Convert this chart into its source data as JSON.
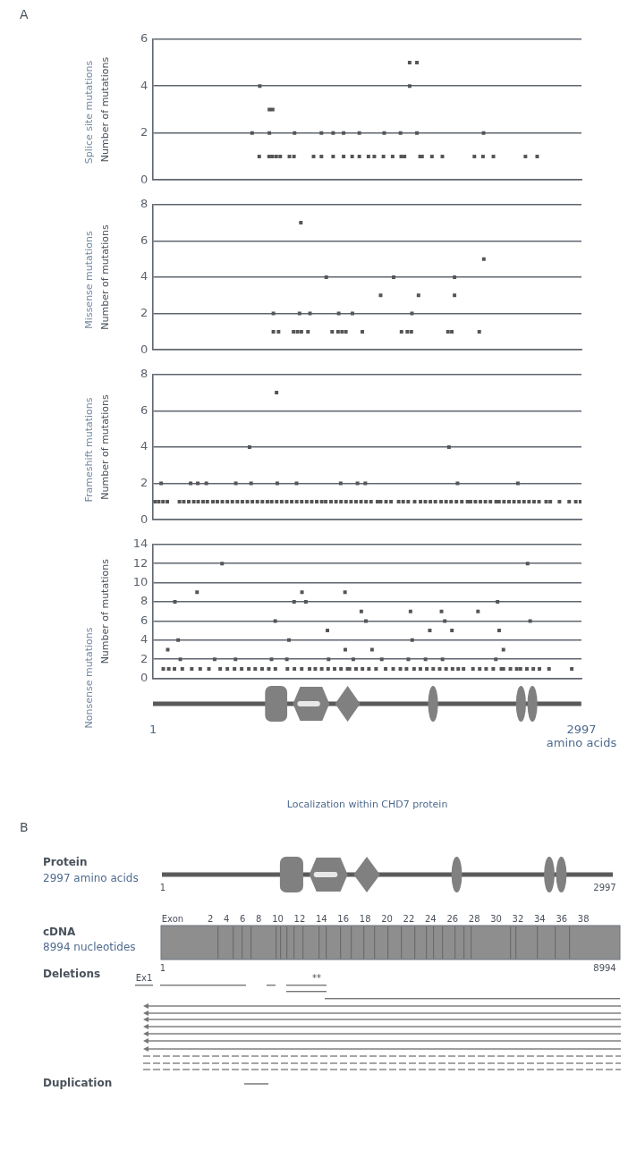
{
  "chart_data": [
    {
      "type": "scatter",
      "title": "Splice site mutations",
      "ylabel": "Number of mutations",
      "annotations": [
        "A"
      ],
      "xlim": [
        1,
        2997
      ],
      "ylim": [
        0,
        6
      ],
      "yticks": [
        0,
        2,
        4,
        6
      ],
      "grid": "y",
      "marker": "square",
      "tick_labels": "y",
      "series": [
        {
          "color": "#555555",
          "x": [
            743,
            812,
            835,
            862,
            890,
            954,
            986,
            1123,
            1178,
            1260,
            1333,
            1393,
            1443,
            1507,
            1548,
            1612,
            1676,
            1736,
            1759,
            1868,
            1882,
            1951,
            2024,
            2248,
            2308,
            2381,
            2605,
            2687
          ],
          "values": [
            1,
            1,
            1,
            1,
            1,
            1,
            1,
            1,
            1,
            1,
            1,
            1,
            1,
            1,
            1,
            1,
            1,
            1,
            1,
            1,
            1,
            1,
            1,
            1,
            1,
            1,
            1,
            1
          ]
        },
        {
          "color": "#555555",
          "x": [
            693,
            814,
            990,
            1178,
            1260,
            1333,
            1443,
            1617,
            1731,
            1846,
            2312
          ],
          "values": [
            2,
            2,
            2,
            2,
            2,
            2,
            2,
            2,
            2,
            2,
            2
          ]
        },
        {
          "color": "#555555",
          "x": [
            814,
            837,
            747,
            1795,
            1795,
            1846
          ],
          "values": [
            3,
            3,
            4,
            4,
            5,
            5
          ]
        }
      ]
    },
    {
      "type": "scatter",
      "title": "Missense mutations",
      "ylabel": "Number of mutations",
      "xlim": [
        1,
        2997
      ],
      "ylim": [
        0,
        8
      ],
      "yticks": [
        0,
        2,
        4,
        6,
        8
      ],
      "grid": "y",
      "marker": "square",
      "tick_labels": "y",
      "series": [
        {
          "color": "#555555",
          "x": [
            842,
            878,
            983,
            1011,
            1038,
            1084,
            1253,
            1294,
            1322,
            1349,
            1464,
            1738,
            1779,
            1807,
            2063,
            2090,
            2282
          ],
          "values": [
            1,
            1,
            1,
            1,
            1,
            1,
            1,
            1,
            1,
            1,
            1,
            1,
            1,
            1,
            1,
            1,
            1
          ]
        },
        {
          "color": "#555555",
          "x": [
            842,
            1025,
            1098,
            1299,
            1395,
            1811
          ],
          "values": [
            2,
            2,
            2,
            2,
            2,
            2
          ]
        },
        {
          "color": "#555555",
          "x": [
            1592,
            1857,
            2109,
            1212,
            1683,
            2109,
            2314,
            1034
          ],
          "values": [
            3,
            3,
            3,
            4,
            4,
            4,
            5,
            7
          ]
        }
      ]
    },
    {
      "type": "scatter",
      "title": "Frameshift mutations",
      "ylabel": "Number of mutations",
      "xlim": [
        1,
        2997
      ],
      "ylim": [
        0,
        8
      ],
      "yticks": [
        0,
        2,
        4,
        6,
        8
      ],
      "grid": "y",
      "marker": "square",
      "tick_labels": "y",
      "series": [
        {
          "color": "#555555",
          "x": [
            14,
            40,
            70,
            100,
            185,
            215,
            250,
            285,
            316,
            350,
            380,
            419,
            450,
            485,
            520,
            555,
            590,
            625,
            660,
            695,
            730,
            765,
            800,
            830,
            865,
            900,
            935,
            970,
            1005,
            1040,
            1075,
            1110,
            1145,
            1180,
            1208,
            1245,
            1280,
            1315,
            1350,
            1385,
            1420,
            1455,
            1490,
            1525,
            1570,
            1592,
            1630,
            1665,
            1718,
            1750,
            1785,
            1830,
            1871,
            1905,
            1940,
            1975,
            2015,
            2050,
            2085,
            2122,
            2160,
            2200,
            2221,
            2255,
            2290,
            2325,
            2360,
            2400,
            2420,
            2455,
            2490,
            2525,
            2560,
            2595,
            2630,
            2665,
            2700,
            2750,
            2779,
            2843,
            2911,
            2957,
            2990
          ],
          "values": [
            1,
            1,
            1,
            1,
            1,
            1,
            1,
            1,
            1,
            1,
            1,
            1,
            1,
            1,
            1,
            1,
            1,
            1,
            1,
            1,
            1,
            1,
            1,
            1,
            1,
            1,
            1,
            1,
            1,
            1,
            1,
            1,
            1,
            1,
            1,
            1,
            1,
            1,
            1,
            1,
            1,
            1,
            1,
            1,
            1,
            1,
            1,
            1,
            1,
            1,
            1,
            1,
            1,
            1,
            1,
            1,
            1,
            1,
            1,
            1,
            1,
            1,
            1,
            1,
            1,
            1,
            1,
            1,
            1,
            1,
            1,
            1,
            1,
            1,
            1,
            1,
            1,
            1,
            1,
            1,
            1,
            1,
            1
          ]
        },
        {
          "color": "#555555",
          "x": [
            57,
            263,
            313,
            373,
            579,
            686,
            869,
            1004,
            1313,
            1430,
            1485,
            2130,
            2552
          ],
          "values": [
            2,
            2,
            2,
            2,
            2,
            2,
            2,
            2,
            2,
            2,
            2,
            2,
            2
          ]
        },
        {
          "color": "#555555",
          "x": [
            675,
            2070,
            864
          ],
          "values": [
            4,
            4,
            7
          ]
        }
      ]
    },
    {
      "type": "scatter",
      "title": "Nonsense mutations",
      "ylabel": "Number of mutations",
      "xlabel": "Localization within CHD7 protein",
      "xlim": [
        1,
        2997
      ],
      "xticks": [
        1,
        {
          "value": 2997,
          "label": "2997 amino acids"
        }
      ],
      "ylim": [
        0,
        14
      ],
      "yticks": [
        0,
        2,
        4,
        6,
        8,
        10,
        12,
        14
      ],
      "grid": "y",
      "marker": "square",
      "series": [
        {
          "color": "#555555",
          "x": [
            72,
            110,
            150,
            205,
            271,
            330,
            391,
            470,
            520,
            570,
            620,
            670,
            715,
            763,
            810,
            856,
            940,
            989,
            1040,
            1095,
            1135,
            1180,
            1225,
            1270,
            1315,
            1361,
            1374,
            1420,
            1465,
            1510,
            1560,
            1627,
            1680,
            1730,
            1773,
            1826,
            1870,
            1915,
            1960,
            2005,
            2050,
            2095,
            2135,
            2172,
            2238,
            2285,
            2330,
            2380,
            2437,
            2451,
            2500,
            2544,
            2570,
            2615,
            2660,
            2703,
            2770,
            2929
          ],
          "values": [
            1,
            1,
            1,
            1,
            1,
            1,
            1,
            1,
            1,
            1,
            1,
            1,
            1,
            1,
            1,
            1,
            1,
            1,
            1,
            1,
            1,
            1,
            1,
            1,
            1,
            1,
            1,
            1,
            1,
            1,
            1,
            1,
            1,
            1,
            1,
            1,
            1,
            1,
            1,
            1,
            1,
            1,
            1,
            1,
            1,
            1,
            1,
            1,
            1,
            1,
            1,
            1,
            1,
            1,
            1,
            1,
            1,
            1
          ]
        },
        {
          "color": "#555555",
          "x": [
            191,
            431,
            577,
            829,
            936,
            1228,
            1401,
            1600,
            1786,
            1906,
            2025,
            2398
          ],
          "values": [
            2,
            2,
            2,
            2,
            2,
            2,
            2,
            2,
            2,
            2,
            2,
            2
          ]
        },
        {
          "color": "#555555",
          "x": [
            103,
            1345,
            1532,
            2451,
            176,
            951,
            1813,
            1220,
            1936,
            2091,
            2421,
            855,
            1489,
            2041,
            2638
          ],
          "values": [
            3,
            3,
            3,
            3,
            4,
            4,
            4,
            5,
            5,
            5,
            5,
            6,
            6,
            6,
            6
          ]
        },
        {
          "color": "#555555",
          "x": [
            1457,
            1801,
            2018,
            2273,
            153,
            987,
            1069,
            2410,
            308,
            1042,
            1343,
            483,
            2620
          ],
          "values": [
            7,
            7,
            7,
            7,
            8,
            8,
            8,
            8,
            9,
            9,
            9,
            12,
            12
          ]
        }
      ]
    },
    {
      "type": "other",
      "annotations": [
        "B",
        "Protein",
        "2997 amino acids",
        "1",
        "2997",
        "cDNA",
        "8994 nucleotides",
        "Exon",
        "2 4 6 8 10 12 14 16 18 20 22 24 26 28 30 32 34 36 38",
        "1",
        "8994",
        "Deletions",
        "Ex1",
        "**",
        "Duplication"
      ]
    }
  ]
}
